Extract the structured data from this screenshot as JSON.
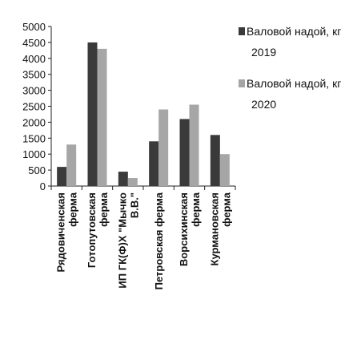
{
  "chart_data": {
    "type": "bar",
    "ylim": [
      0,
      5000
    ],
    "y_ticks": [
      "0",
      "500",
      "1000",
      "1500",
      "2000",
      "2500",
      "3000",
      "3500",
      "4000",
      "4500",
      "5000"
    ],
    "categories": [
      [
        "Рядовиченская",
        "ферма"
      ],
      [
        "Готопутовская",
        "ферма"
      ],
      [
        "ИП ГК(Ф)Х \"Мычко",
        "В.В.\""
      ],
      [
        "Петровская ферма"
      ],
      [
        "Ворсихинская",
        "ферма"
      ],
      [
        "Курмановская",
        "ферма"
      ]
    ],
    "series": [
      {
        "name_lines": [
          "Валовой надой, кг",
          "2019"
        ],
        "color": "#3a3a3a",
        "values": [
          600,
          4500,
          450,
          1400,
          2100,
          1600
        ]
      },
      {
        "name_lines": [
          "Валовой надой, кг",
          "2020"
        ],
        "color": "#a6a6a6",
        "values": [
          1300,
          4300,
          250,
          2400,
          2550,
          1000
        ]
      }
    ],
    "grid": false,
    "legend_position": "right"
  }
}
